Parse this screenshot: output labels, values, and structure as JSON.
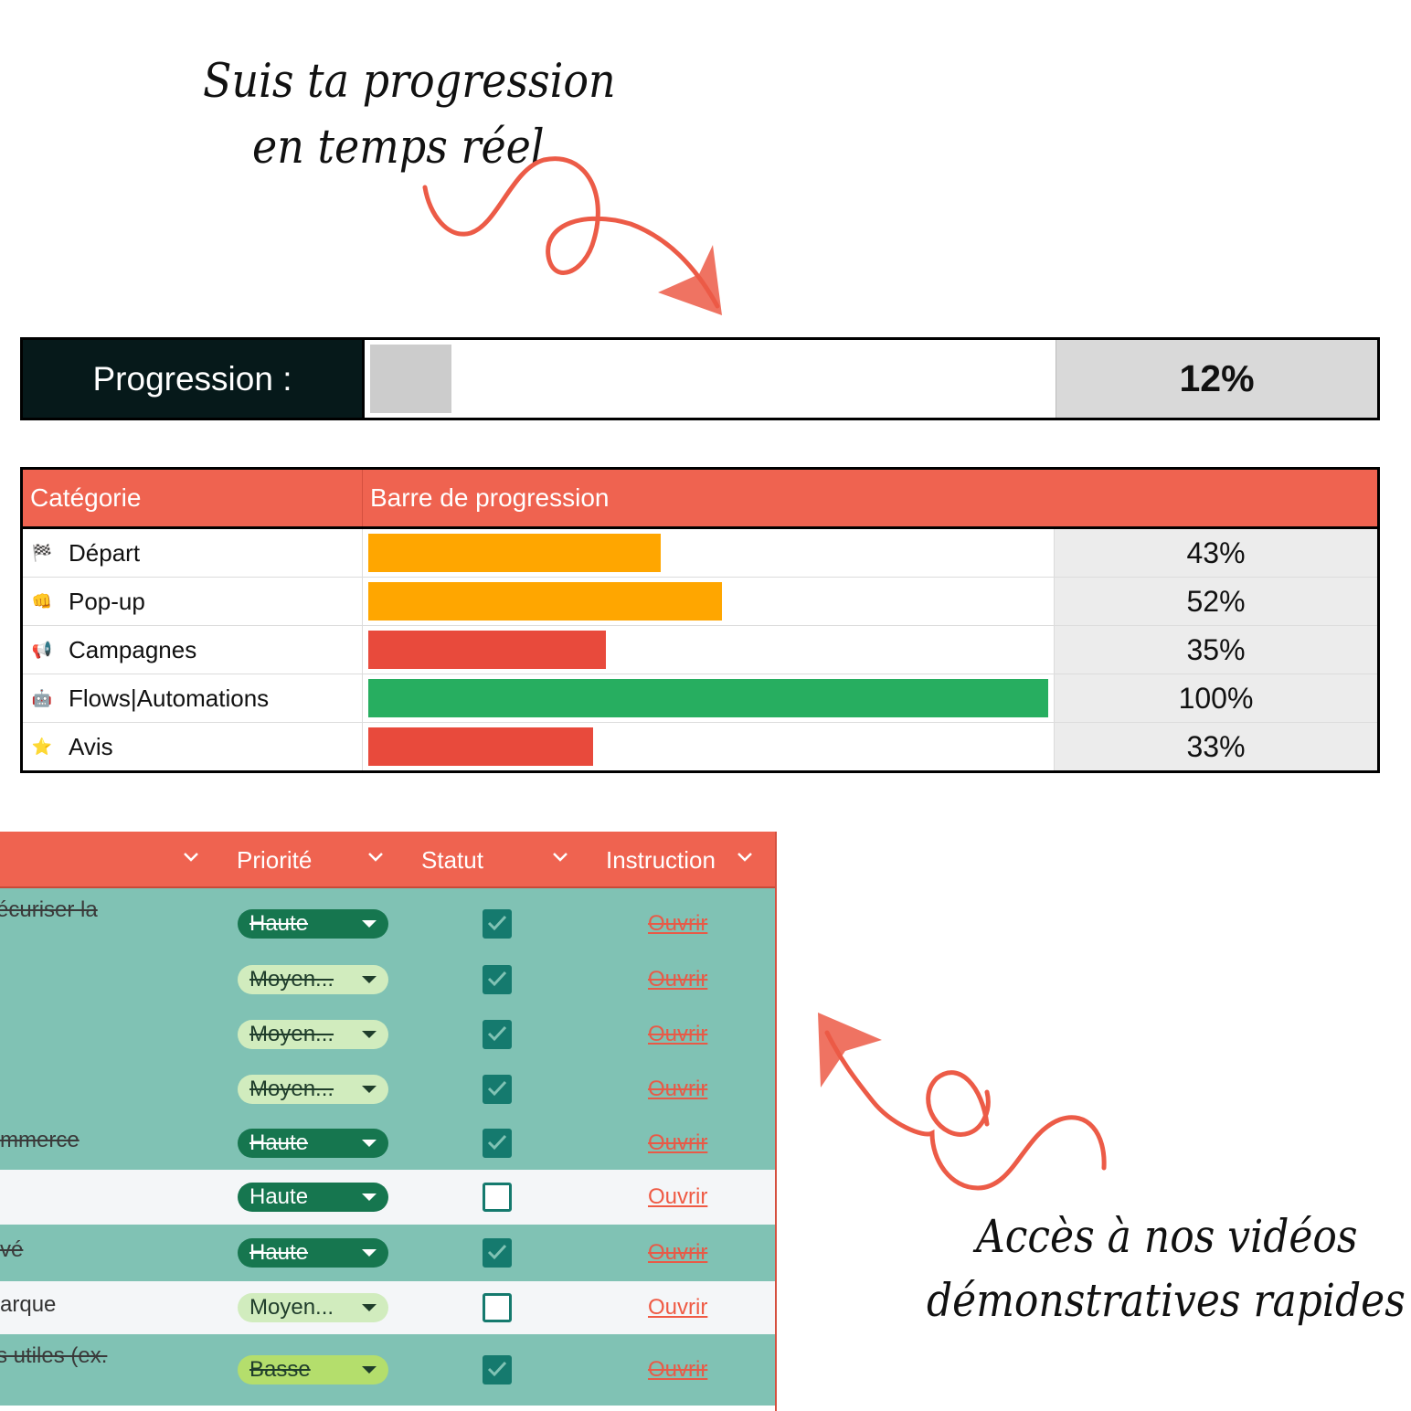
{
  "annotations": {
    "top_line1": "Suis ta progression",
    "top_line2": "en temps réel",
    "bottom_line1": "Accès à nos vidéos",
    "bottom_line2": "démonstratives rapides"
  },
  "colors": {
    "accent": "#ef6350",
    "dark_label": "#06191a",
    "orange": "#ffa600",
    "red": "#e84a3c",
    "green": "#27ae60",
    "done_row": "#80c2b4",
    "haute_chip": "#16764f",
    "moyen_chip": "#d1ecbe",
    "basse_chip": "#b4de6c"
  },
  "overall": {
    "label": "Progression :",
    "percent_text": "12%",
    "fraction": 0.12
  },
  "categories": {
    "header_category": "Catégorie",
    "header_bar": "Barre de progression",
    "rows": [
      {
        "icon": "checkered-flag-icon",
        "glyph": "🏁",
        "name": "Départ",
        "percent_text": "43%",
        "fraction": 0.43,
        "color": "#ffa600"
      },
      {
        "icon": "fist-icon",
        "glyph": "👊",
        "name": "Pop-up",
        "percent_text": "52%",
        "fraction": 0.52,
        "color": "#ffa600"
      },
      {
        "icon": "megaphone-icon",
        "glyph": "📢",
        "name": "Campagnes",
        "percent_text": "35%",
        "fraction": 0.35,
        "color": "#e84a3c"
      },
      {
        "icon": "robot-icon",
        "glyph": "🤖",
        "name": "Flows|Automations",
        "percent_text": "100%",
        "fraction": 1.0,
        "color": "#27ae60"
      },
      {
        "icon": "star-icon",
        "glyph": "⭐",
        "name": "Avis",
        "percent_text": "33%",
        "fraction": 0.33,
        "color": "#e84a3c"
      }
    ]
  },
  "tasks": {
    "header_priority": "Priorité",
    "header_status": "Statut",
    "header_instruction": "Instruction",
    "rows": [
      {
        "name": "écuriser la",
        "priority": "Haute",
        "level": "haute",
        "checked": true,
        "link": "Ouvrir"
      },
      {
        "name": "",
        "priority": "Moyen...",
        "level": "moyen",
        "checked": true,
        "link": "Ouvrir"
      },
      {
        "name": "",
        "priority": "Moyen...",
        "level": "moyen",
        "checked": true,
        "link": "Ouvrir"
      },
      {
        "name": "",
        "priority": "Moyen...",
        "level": "moyen",
        "checked": true,
        "link": "Ouvrir"
      },
      {
        "name": "mmerce",
        "priority": "Haute",
        "level": "haute",
        "checked": true,
        "link": "Ouvrir"
      },
      {
        "name": "",
        "priority": "Haute",
        "level": "haute",
        "checked": false,
        "link": "Ouvrir"
      },
      {
        "name": "vé",
        "priority": "Haute",
        "level": "haute",
        "checked": true,
        "link": "Ouvrir"
      },
      {
        "name": "arque",
        "priority": "Moyen...",
        "level": "moyen",
        "checked": false,
        "link": "Ouvrir"
      },
      {
        "name": "s utiles (ex.",
        "priority": "Basse",
        "level": "basse",
        "checked": true,
        "link": "Ouvrir"
      }
    ]
  }
}
